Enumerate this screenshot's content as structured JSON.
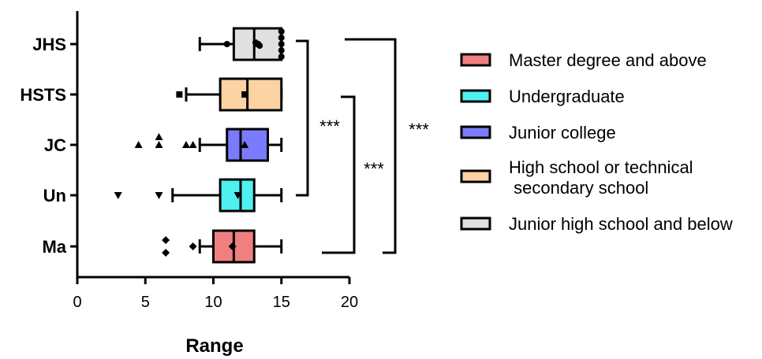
{
  "chart_data": {
    "type": "boxplot",
    "orientation": "horizontal",
    "xlabel": "Range",
    "xlim": [
      0,
      20
    ],
    "xticks": [
      "0",
      "5",
      "10",
      "15",
      "20"
    ],
    "categories": [
      "JHS",
      "HSTS",
      "JC",
      "Un",
      "Ma"
    ],
    "series": [
      {
        "name": "Junior high school and below",
        "category": "JHS",
        "color": "#e0e0e0",
        "min": 9,
        "q1": 11.5,
        "median": 13,
        "q3": 15,
        "max": 15,
        "mean": 13.2,
        "points": [
          [
            11,
            0
          ],
          [
            13.1,
            -0.05
          ],
          [
            13.4,
            0.05
          ],
          [
            13.3,
            0
          ],
          [
            15,
            -0.4
          ],
          [
            15,
            -0.2
          ],
          [
            15,
            0
          ],
          [
            15,
            0.2
          ],
          [
            15,
            0.4
          ]
        ]
      },
      {
        "name": "High school or technical secondary school",
        "category": "HSTS",
        "color": "#fdd3a4",
        "min": 8,
        "q1": 10.5,
        "median": 12.5,
        "q3": 15,
        "max": 15,
        "mean": 12.3,
        "points": [
          [
            7.5,
            0
          ]
        ]
      },
      {
        "name": "Junior college",
        "category": "JC",
        "color": "#7b7bff",
        "min": 9,
        "q1": 11,
        "median": 12,
        "q3": 14,
        "max": 15,
        "mean": 12.3,
        "points": [
          [
            4.5,
            0
          ],
          [
            6,
            0
          ],
          [
            6,
            -0.25
          ],
          [
            8,
            0
          ],
          [
            8.5,
            0
          ]
        ]
      },
      {
        "name": "Undergraduate",
        "category": "Un",
        "color": "#4ff0f0",
        "min": 7,
        "q1": 10.5,
        "median": 12,
        "q3": 13,
        "max": 15,
        "mean": 11.8,
        "points": [
          [
            3,
            0
          ],
          [
            6,
            0
          ]
        ]
      },
      {
        "name": "Master degree and above",
        "category": "Ma",
        "color": "#f07f7f",
        "min": 9,
        "q1": 10,
        "median": 11.5,
        "q3": 13,
        "max": 15,
        "mean": 11.4,
        "points": [
          [
            6.5,
            -0.2
          ],
          [
            6.5,
            0.2
          ],
          [
            8.5,
            0
          ]
        ]
      }
    ],
    "legend_order": [
      "Master degree and above",
      "Undergraduate",
      "Junior college",
      "High school or technical\n secondary school",
      "Junior high school and below"
    ],
    "legend_colors": [
      "#f07f7f",
      "#4ff0f0",
      "#7b7bff",
      "#fdd3a4",
      "#e0e0e0"
    ],
    "legend_position": "right",
    "significance": [
      {
        "label": "***",
        "from": "JHS",
        "to": "Un"
      },
      {
        "label": "***",
        "from": "HSTS",
        "to": "Ma"
      },
      {
        "label": "***",
        "from": "JHS",
        "to": "Ma"
      }
    ],
    "grid": false
  }
}
